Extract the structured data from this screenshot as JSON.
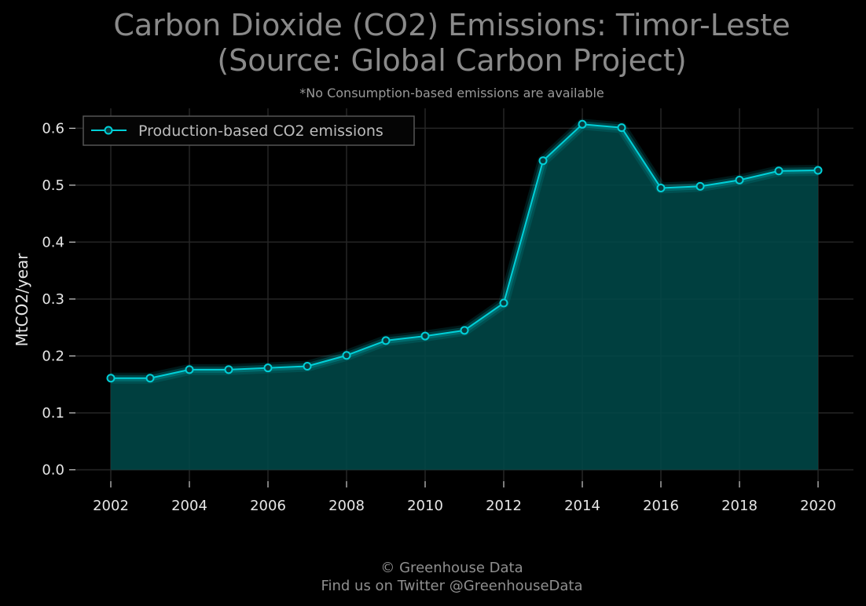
{
  "chart_data": {
    "type": "area",
    "title_line1": "Carbon Dioxide (CO2) Emissions: Timor-Leste",
    "title_line2": "(Source: Global Carbon Project)",
    "subtitle": "*No Consumption-based emissions are available",
    "ylabel": "MtCO2/year",
    "xlabel": "",
    "xlim": [
      2001.1,
      2020.9
    ],
    "ylim": [
      -0.02,
      0.635
    ],
    "x_ticks": [
      2002,
      2004,
      2006,
      2008,
      2010,
      2012,
      2014,
      2016,
      2018,
      2020
    ],
    "y_ticks": [
      0.0,
      0.1,
      0.2,
      0.3,
      0.4,
      0.5,
      0.6
    ],
    "y_tick_labels": [
      "0.0",
      "0.1",
      "0.2",
      "0.3",
      "0.4",
      "0.5",
      "0.6"
    ],
    "grid": true,
    "legend_position": "top-left",
    "series": [
      {
        "name": "Production-based CO2 emissions",
        "color": "#00d0d8",
        "fill_color": "#004a4a",
        "x": [
          2002,
          2003,
          2004,
          2005,
          2006,
          2007,
          2008,
          2009,
          2010,
          2011,
          2012,
          2013,
          2014,
          2015,
          2016,
          2017,
          2018,
          2019,
          2020
        ],
        "values": [
          0.161,
          0.161,
          0.176,
          0.176,
          0.179,
          0.182,
          0.201,
          0.227,
          0.235,
          0.245,
          0.293,
          0.543,
          0.607,
          0.601,
          0.495,
          0.498,
          0.509,
          0.525,
          0.526
        ]
      }
    ]
  },
  "footer": {
    "line1": "© Greenhouse Data",
    "line2": "Find us on Twitter @GreenhouseData"
  },
  "colors": {
    "background": "#000000",
    "grid": "#262626",
    "axis_text": "#e6e6e6",
    "title": "#8a8a8a"
  }
}
